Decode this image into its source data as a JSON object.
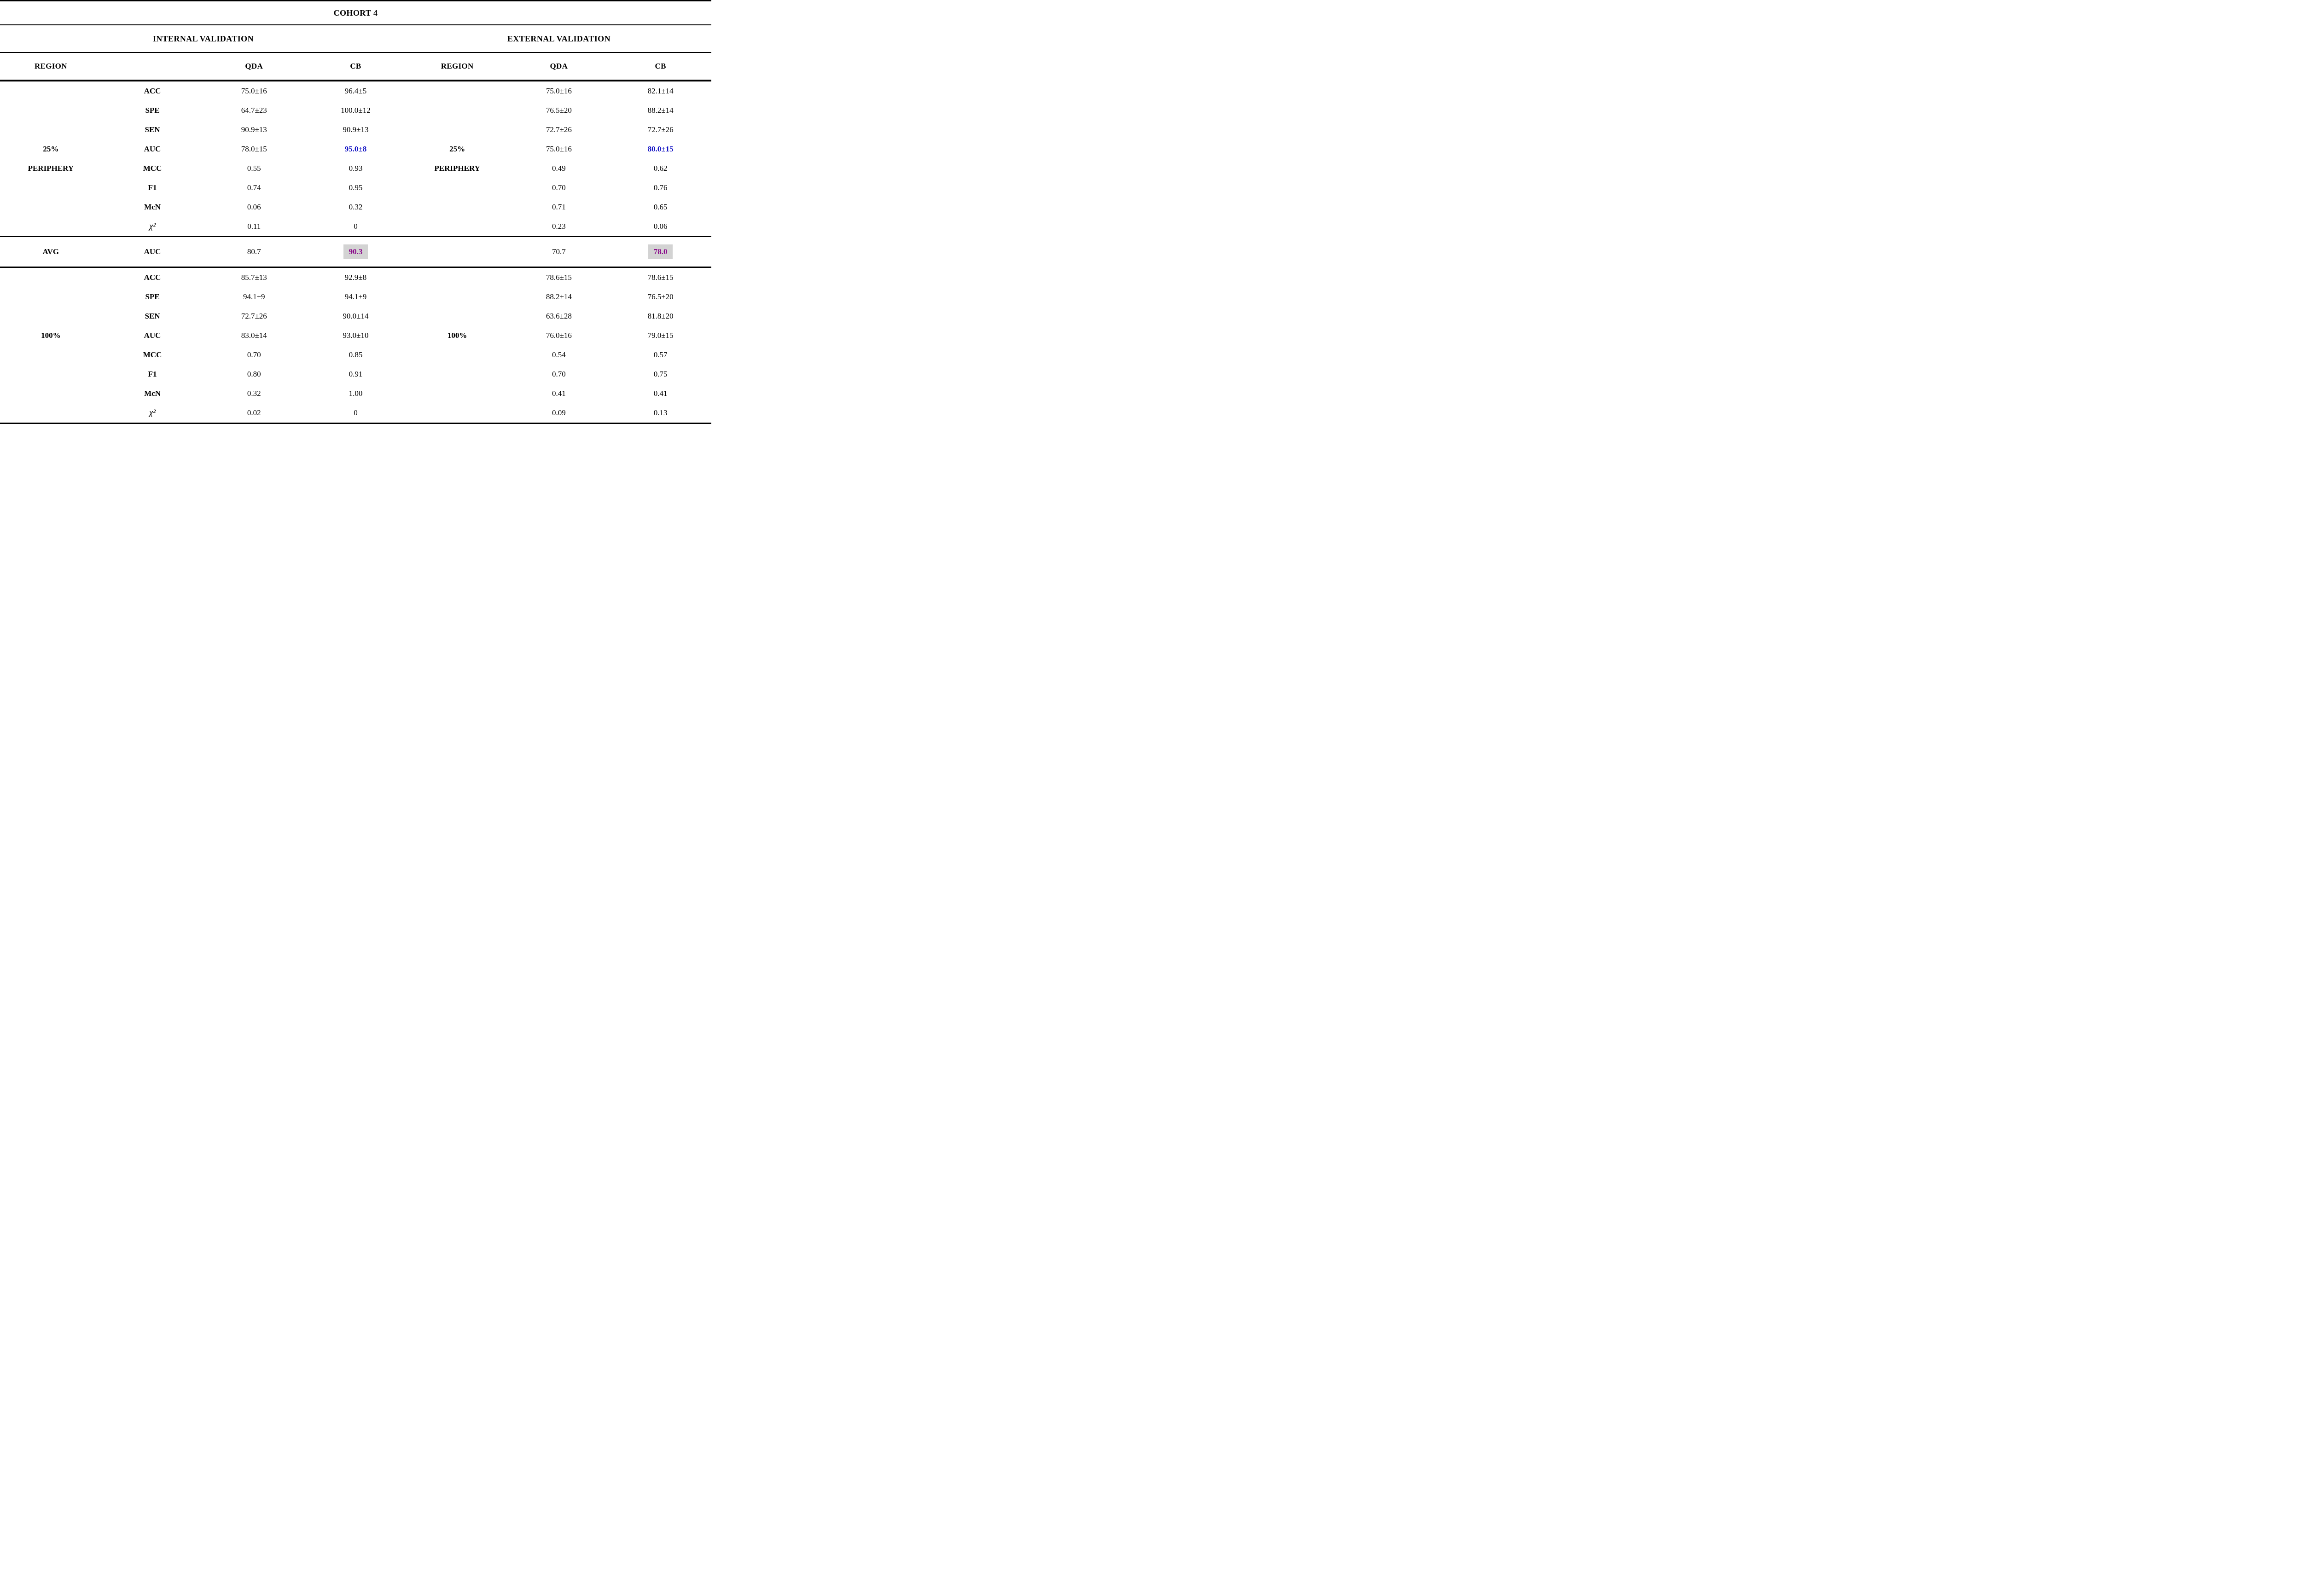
{
  "title": "COHORT 4",
  "groups": {
    "internal": "INTERNAL VALIDATION",
    "external": "EXTERNAL VALIDATION"
  },
  "columns": {
    "region": "REGION",
    "metric": "",
    "qda": "QDA",
    "cb": "CB"
  },
  "colors": {
    "accent_blue": "#1515c4",
    "highlight_text_purple": "#8a0a8a",
    "highlight_bg_gray": "#d3d3d3",
    "text": "#000000",
    "background": "#ffffff"
  },
  "sections": [
    {
      "region_label_line1": "25%",
      "region_label_line2": "PERIPHERY",
      "rows": [
        {
          "metric": "ACC",
          "int_qda": "75.0±16",
          "int_cb": "96.4±5",
          "ext_qda": "75.0±16",
          "ext_cb": "82.1±14"
        },
        {
          "metric": "SPE",
          "int_qda": "64.7±23",
          "int_cb": "100.0±12",
          "ext_qda": "76.5±20",
          "ext_cb": "88.2±14"
        },
        {
          "metric": "SEN",
          "int_qda": "90.9±13",
          "int_cb": "90.9±13",
          "ext_qda": "72.7±26",
          "ext_cb": "72.7±26"
        },
        {
          "metric": "AUC",
          "region_int": "25%",
          "region_ext": "25%",
          "int_qda": "78.0±15",
          "int_cb": "95.0±8",
          "ext_qda": "75.0±16",
          "ext_cb": "80.0±15",
          "accent": [
            "int_cb",
            "ext_cb"
          ]
        },
        {
          "metric": "MCC",
          "region_int": "PERIPHERY",
          "region_ext": "PERIPHERY",
          "int_qda": "0.55",
          "int_cb": "0.93",
          "ext_qda": "0.49",
          "ext_cb": "0.62"
        },
        {
          "metric": "F1",
          "int_qda": "0.74",
          "int_cb": "0.95",
          "ext_qda": "0.70",
          "ext_cb": "0.76"
        },
        {
          "metric": "McN",
          "int_qda": "0.06",
          "int_cb": "0.32",
          "ext_qda": "0.71",
          "ext_cb": "0.65"
        },
        {
          "metric": "χ²",
          "metric_italic": true,
          "int_qda": "0.11",
          "int_cb": "0",
          "ext_qda": "0.23",
          "ext_cb": "0.06"
        }
      ]
    },
    {
      "region_label_line1": "100%",
      "region_label_line2": "",
      "rows": [
        {
          "metric": "ACC",
          "int_qda": "85.7±13",
          "int_cb": "92.9±8",
          "ext_qda": "78.6±15",
          "ext_cb": "78.6±15"
        },
        {
          "metric": "SPE",
          "int_qda": "94.1±9",
          "int_cb": "94.1±9",
          "ext_qda": "88.2±14",
          "ext_cb": "76.5±20"
        },
        {
          "metric": "SEN",
          "int_qda": "72.7±26",
          "int_cb": "90.0±14",
          "ext_qda": "63.6±28",
          "ext_cb": "81.8±20"
        },
        {
          "metric": "AUC",
          "region_int": "100%",
          "region_ext": "100%",
          "int_qda": "83.0±14",
          "int_cb": "93.0±10",
          "ext_qda": "76.0±16",
          "ext_cb": "79.0±15"
        },
        {
          "metric": "MCC",
          "int_qda": "0.70",
          "int_cb": "0.85",
          "ext_qda": "0.54",
          "ext_cb": "0.57"
        },
        {
          "metric": "F1",
          "int_qda": "0.80",
          "int_cb": "0.91",
          "ext_qda": "0.70",
          "ext_cb": "0.75"
        },
        {
          "metric": "McN",
          "int_qda": "0.32",
          "int_cb": "1.00",
          "ext_qda": "0.41",
          "ext_cb": "0.41"
        },
        {
          "metric": "χ²",
          "metric_italic": true,
          "int_qda": "0.02",
          "int_cb": "0",
          "ext_qda": "0.09",
          "ext_cb": "0.13"
        }
      ]
    }
  ],
  "avg": {
    "label": "AVG",
    "metric": "AUC",
    "int_qda": "80.7",
    "int_cb": "90.3",
    "ext_qda": "70.7",
    "ext_cb": "78.0"
  }
}
